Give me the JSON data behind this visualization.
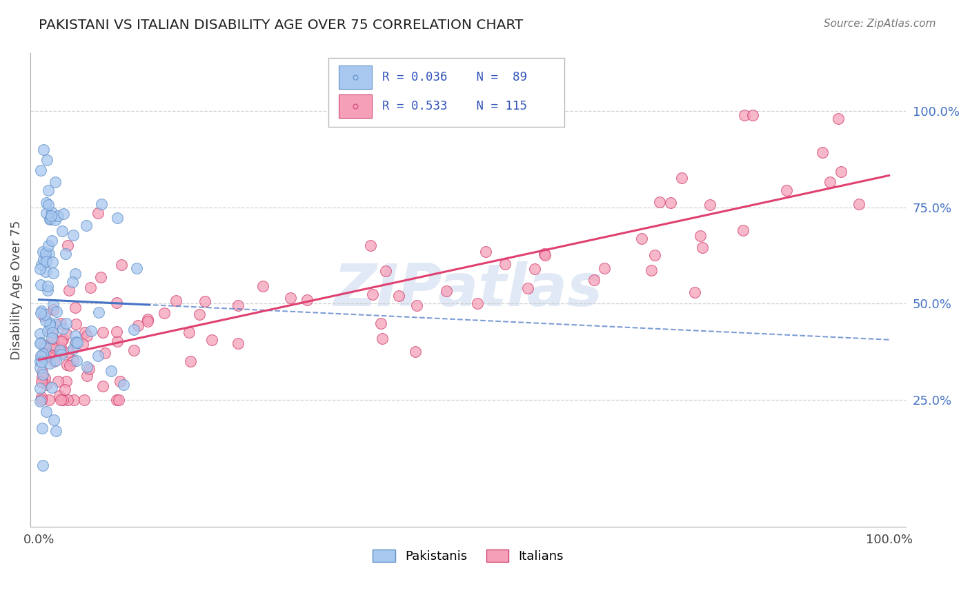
{
  "title": "PAKISTANI VS ITALIAN DISABILITY AGE OVER 75 CORRELATION CHART",
  "source_text": "Source: ZipAtlas.com",
  "ylabel": "Disability Age Over 75",
  "pak_color": "#A8C8F0",
  "ita_color": "#F5A0B8",
  "pak_edge_color": "#6090C8",
  "ita_edge_color": "#D04070",
  "trend_pak_color": "#4472C4",
  "trend_ita_color": "#E04070",
  "background_color": "#FFFFFF",
  "grid_color": "#CCCCCC",
  "watermark_color": "#C8D8EE",
  "legend_text_color": "#3355BB",
  "right_axis_color": "#4472C4",
  "title_color": "#222222",
  "source_color": "#777777"
}
